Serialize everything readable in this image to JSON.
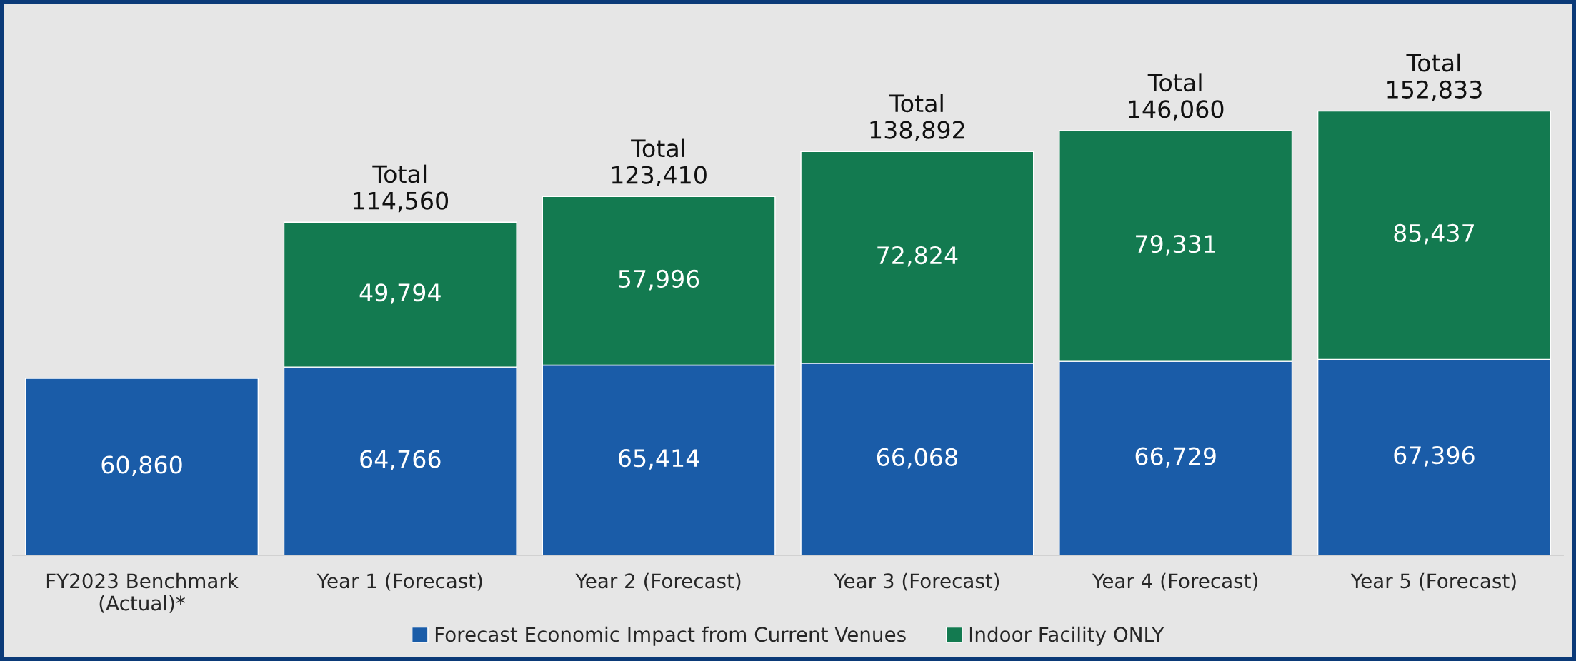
{
  "chart_data": {
    "type": "bar",
    "stacked": true,
    "legend": "bottom",
    "grid": false,
    "categories": [
      "FY2023 Benchmark\n(Actual)*",
      "Year 1 (Forecast)",
      "Year 2 (Forecast)",
      "Year 3 (Forecast)",
      "Year 4 (Forecast)",
      "Year 5 (Forecast)"
    ],
    "series": [
      {
        "name": "Forecast Economic Impact from Current Venues",
        "color": "#1a5ca8",
        "values": [
          60860,
          64766,
          65414,
          66068,
          66729,
          67396
        ],
        "value_labels": [
          "60,860",
          "64,766",
          "65,414",
          "66,068",
          "66,729",
          "67,396"
        ]
      },
      {
        "name": "Indoor Facility ONLY",
        "color": "#137a50",
        "values": [
          null,
          49794,
          57996,
          72824,
          79331,
          85437
        ],
        "value_labels": [
          null,
          "49,794",
          "57,996",
          "72,824",
          "79,331",
          "85,437"
        ]
      }
    ],
    "totals": [
      null,
      "Total\n114,560",
      "Total\n123,410",
      "Total\n138,892",
      "Total\n146,060",
      "Total\n152,833"
    ]
  }
}
